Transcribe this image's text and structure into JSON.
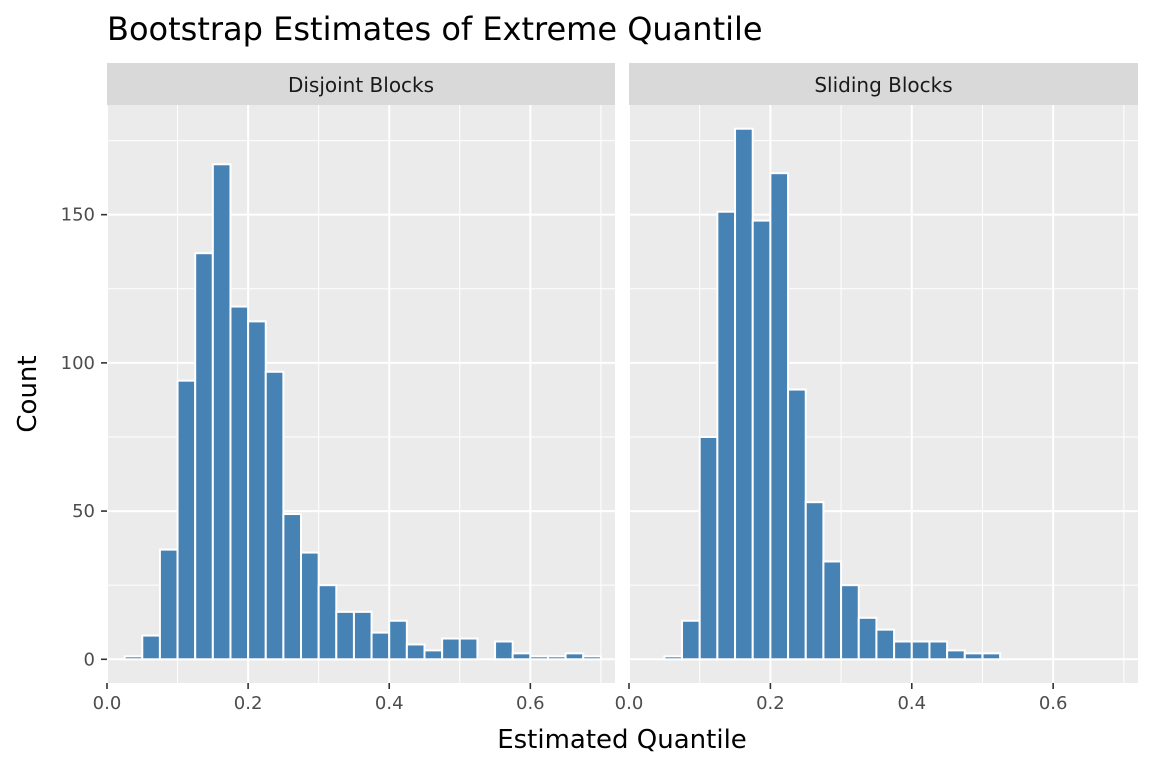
{
  "title": "Bootstrap Estimates of Extreme Quantile",
  "xlabel": "Estimated Quantile",
  "ylabel": "Count",
  "chart_data": {
    "type": "bar",
    "title": "Bootstrap Estimates of Extreme Quantile",
    "xlabel": "Estimated Quantile",
    "ylabel": "Count",
    "bar_color": "#4682b4",
    "bin_width": 0.025,
    "xlim": [
      0.0,
      0.72
    ],
    "ylim": [
      -8,
      187
    ],
    "x_ticks": [
      0.0,
      0.2,
      0.4,
      0.6
    ],
    "x_tick_labels": [
      "0.0",
      "0.2",
      "0.4",
      "0.6"
    ],
    "y_ticks": [
      0,
      50,
      100,
      150
    ],
    "y_tick_labels": [
      "0",
      "50",
      "100",
      "150"
    ],
    "grid": true,
    "panels": [
      {
        "name": "Disjoint Blocks",
        "bin_centers": [
          0.0375,
          0.0625,
          0.0875,
          0.1125,
          0.1375,
          0.1625,
          0.1875,
          0.2125,
          0.2375,
          0.2625,
          0.2875,
          0.3125,
          0.3375,
          0.3625,
          0.3875,
          0.4125,
          0.4375,
          0.4625,
          0.4875,
          0.5125,
          0.5375,
          0.5625,
          0.5875,
          0.6125,
          0.6375,
          0.6625,
          0.6875
        ],
        "counts": [
          1,
          8,
          37,
          94,
          137,
          167,
          119,
          114,
          97,
          49,
          36,
          25,
          16,
          16,
          9,
          13,
          5,
          3,
          7,
          7,
          0,
          6,
          2,
          1,
          1,
          2,
          1
        ]
      },
      {
        "name": "Sliding Blocks",
        "bin_centers": [
          0.0375,
          0.0625,
          0.0875,
          0.1125,
          0.1375,
          0.1625,
          0.1875,
          0.2125,
          0.2375,
          0.2625,
          0.2875,
          0.3125,
          0.3375,
          0.3625,
          0.3875,
          0.4125,
          0.4375,
          0.4625,
          0.4875,
          0.5125,
          0.5375,
          0.5625,
          0.5875,
          0.6125,
          0.6375,
          0.6625,
          0.6875
        ],
        "counts": [
          0,
          1,
          13,
          75,
          151,
          179,
          148,
          164,
          91,
          53,
          33,
          25,
          14,
          10,
          6,
          6,
          6,
          3,
          2,
          2,
          0,
          0,
          0,
          0,
          0,
          0,
          0
        ]
      }
    ]
  }
}
